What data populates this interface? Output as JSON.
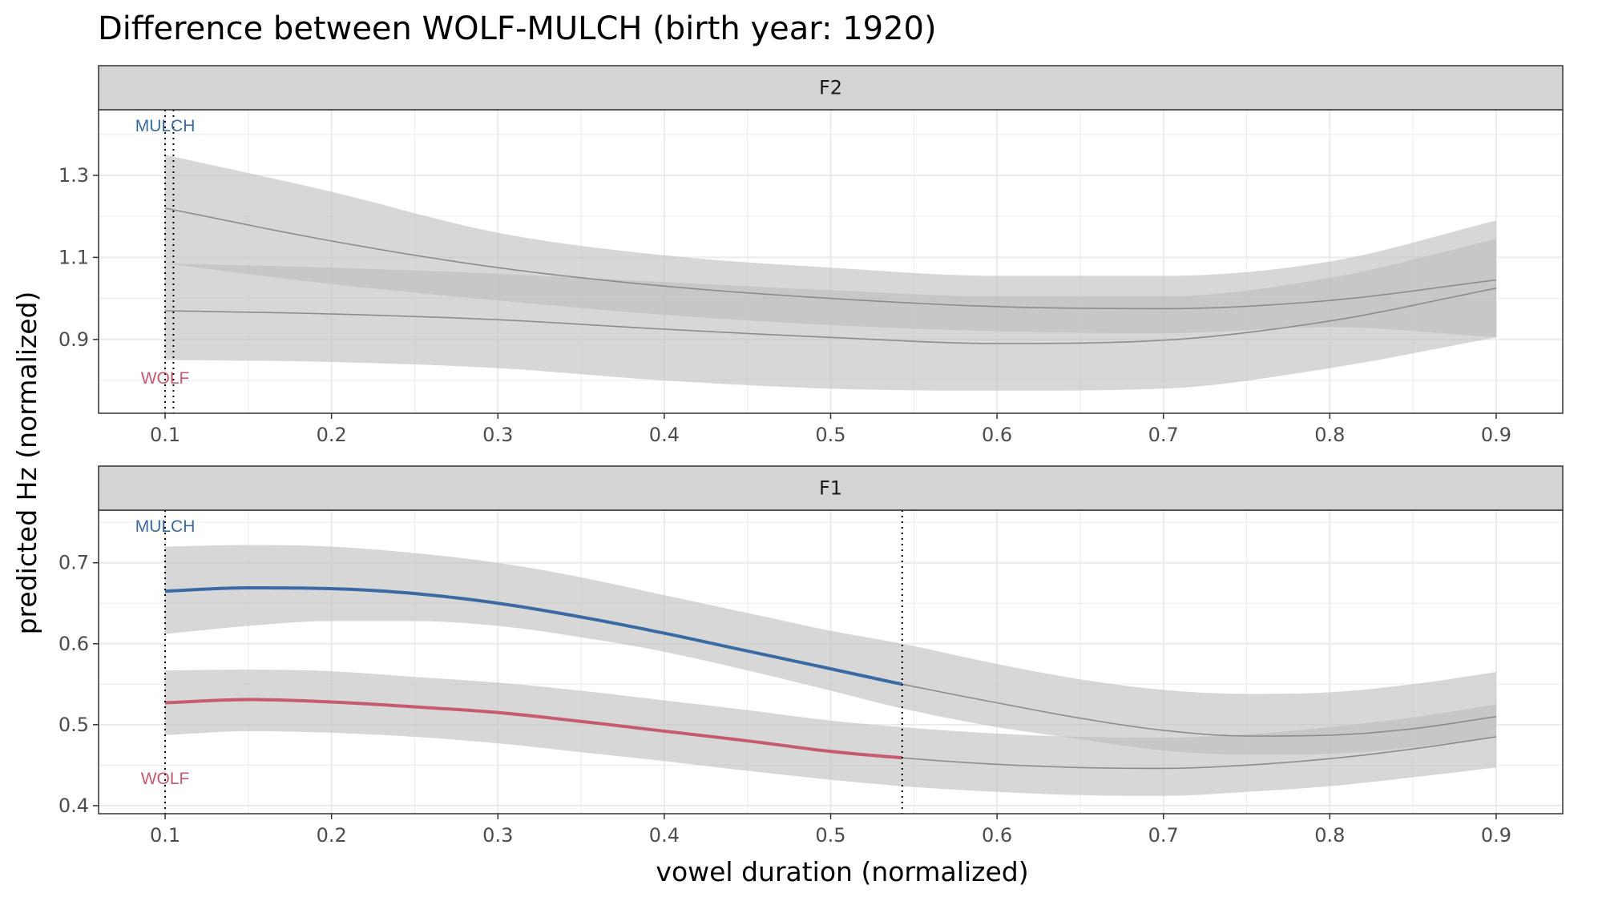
{
  "chart_data": {
    "type": "line",
    "title": "Difference between WOLF-MULCH (birth year: 1920)",
    "xlabel": "vowel duration (normalized)",
    "ylabel": "predicted Hz (normalized)",
    "x_ticks": [
      "0.1",
      "0.2",
      "0.3",
      "0.4",
      "0.5",
      "0.6",
      "0.7",
      "0.8",
      "0.9"
    ],
    "xlim": [
      0.06,
      0.94
    ],
    "grid": true,
    "colors": {
      "MULCH": "#3a6aa3",
      "WOLF": "#c55a70",
      "neutral": "#8c8c8c",
      "band": "#bdbdbd",
      "strip": "#d4d4d4"
    },
    "facets": [
      {
        "label": "F2",
        "ylim": [
          0.72,
          1.46
        ],
        "y_ticks": [
          "0.9",
          "1.1",
          "1.3"
        ],
        "y_tick_values": [
          0.9,
          1.1,
          1.3
        ],
        "annotations": {
          "upper": "MULCH",
          "lower": "WOLF"
        },
        "vlines": [
          0.1,
          0.105
        ],
        "highlight_range": null,
        "series": [
          {
            "name": "MULCH",
            "x": [
              0.1,
              0.2,
              0.3,
              0.4,
              0.5,
              0.6,
              0.7,
              0.8,
              0.9
            ],
            "y": [
              1.22,
              1.14,
              1.075,
              1.03,
              1.0,
              0.98,
              0.975,
              0.995,
              1.045
            ],
            "lower": [
              1.085,
              1.035,
              0.995,
              0.96,
              0.935,
              0.92,
              0.915,
              0.93,
              0.905
            ],
            "upper": [
              1.35,
              1.26,
              1.16,
              1.105,
              1.075,
              1.055,
              1.055,
              1.09,
              1.19
            ]
          },
          {
            "name": "WOLF",
            "x": [
              0.1,
              0.2,
              0.3,
              0.4,
              0.5,
              0.6,
              0.7,
              0.8,
              0.9
            ],
            "y": [
              0.97,
              0.962,
              0.948,
              0.925,
              0.905,
              0.89,
              0.898,
              0.945,
              1.025
            ],
            "lower": [
              0.85,
              0.845,
              0.83,
              0.8,
              0.78,
              0.775,
              0.78,
              0.83,
              0.905
            ],
            "upper": [
              1.085,
              1.075,
              1.06,
              1.04,
              1.02,
              1.005,
              1.005,
              1.05,
              1.145
            ]
          }
        ]
      },
      {
        "label": "F1",
        "ylim": [
          0.39,
          0.765
        ],
        "y_ticks": [
          "0.4",
          "0.5",
          "0.6",
          "0.7"
        ],
        "y_tick_values": [
          0.4,
          0.5,
          0.6,
          0.7
        ],
        "annotations": {
          "upper": "MULCH",
          "lower": "WOLF"
        },
        "vlines": [
          0.1,
          0.543
        ],
        "highlight_range": [
          0.1,
          0.543
        ],
        "series": [
          {
            "name": "MULCH",
            "x": [
              0.1,
              0.15,
              0.2,
              0.25,
              0.3,
              0.35,
              0.4,
              0.45,
              0.5,
              0.543,
              0.6,
              0.65,
              0.7,
              0.75,
              0.8,
              0.85,
              0.9
            ],
            "y": [
              0.665,
              0.669,
              0.668,
              0.662,
              0.65,
              0.633,
              0.613,
              0.591,
              0.569,
              0.55,
              0.527,
              0.508,
              0.493,
              0.486,
              0.487,
              0.495,
              0.51
            ],
            "lower": [
              0.612,
              0.622,
              0.628,
              0.628,
              0.622,
              0.608,
              0.59,
              0.567,
              0.542,
              0.52,
              0.497,
              0.482,
              0.468,
              0.463,
              0.464,
              0.472,
              0.485
            ],
            "upper": [
              0.72,
              0.722,
              0.72,
              0.712,
              0.7,
              0.682,
              0.66,
              0.638,
              0.616,
              0.6,
              0.575,
              0.556,
              0.543,
              0.538,
              0.54,
              0.55,
              0.565
            ]
          },
          {
            "name": "WOLF",
            "x": [
              0.1,
              0.15,
              0.2,
              0.25,
              0.3,
              0.35,
              0.4,
              0.45,
              0.5,
              0.543,
              0.6,
              0.65,
              0.7,
              0.75,
              0.8,
              0.85,
              0.9
            ],
            "y": [
              0.527,
              0.531,
              0.528,
              0.522,
              0.515,
              0.504,
              0.492,
              0.48,
              0.467,
              0.459,
              0.451,
              0.447,
              0.446,
              0.45,
              0.458,
              0.47,
              0.485
            ],
            "lower": [
              0.487,
              0.492,
              0.49,
              0.485,
              0.477,
              0.466,
              0.455,
              0.443,
              0.432,
              0.424,
              0.417,
              0.413,
              0.412,
              0.417,
              0.424,
              0.435,
              0.447
            ],
            "upper": [
              0.567,
              0.568,
              0.566,
              0.559,
              0.552,
              0.542,
              0.53,
              0.518,
              0.505,
              0.497,
              0.489,
              0.485,
              0.484,
              0.488,
              0.497,
              0.509,
              0.525
            ]
          }
        ]
      }
    ]
  }
}
